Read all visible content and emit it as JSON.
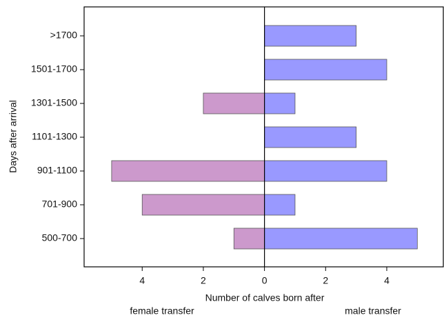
{
  "chart_data": {
    "type": "pyramid",
    "xlabel": "Number of calves born after",
    "ylabel": "Days after arrival",
    "categories": [
      ">1700",
      "1501-1700",
      "1301-1500",
      "1101-1300",
      "901-1100",
      "701-900",
      "500-700"
    ],
    "series": [
      {
        "name": "female transfer",
        "color": "#cc99cc",
        "values": [
          0,
          0,
          -2,
          0,
          -5,
          -4,
          -1
        ]
      },
      {
        "name": "male transfer",
        "color": "#9999ff",
        "values": [
          3,
          4,
          1,
          3,
          4,
          1,
          5
        ]
      }
    ],
    "xlim": [
      -5.9,
      5.85
    ],
    "xticks": [
      {
        "value": -4,
        "label": "4"
      },
      {
        "value": -2,
        "label": "2"
      },
      0,
      2,
      4
    ]
  }
}
